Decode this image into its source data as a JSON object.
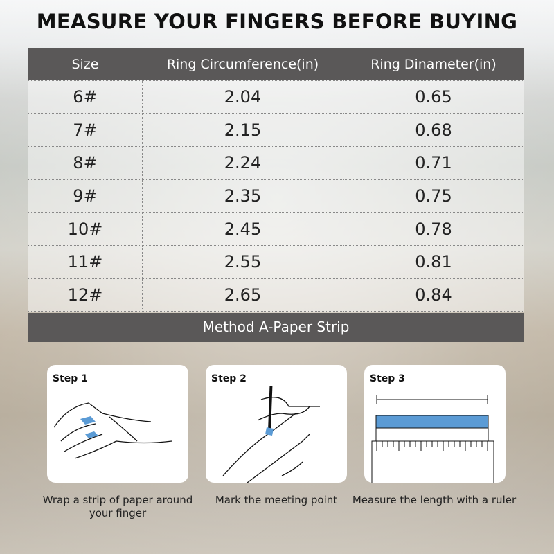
{
  "title": "MEASURE YOUR FINGERS BEFORE BUYING",
  "table": {
    "headers": [
      "Size",
      "Ring Circumference(in)",
      "Ring Dinameter(in)"
    ],
    "rows": [
      [
        "6#",
        "2.04",
        "0.65"
      ],
      [
        "7#",
        "2.15",
        "0.68"
      ],
      [
        "8#",
        "2.24",
        "0.71"
      ],
      [
        "9#",
        "2.35",
        "0.75"
      ],
      [
        "10#",
        "2.45",
        "0.78"
      ],
      [
        "11#",
        "2.55",
        "0.81"
      ],
      [
        "12#",
        "2.65",
        "0.84"
      ]
    ]
  },
  "method": "Method A-Paper Strip",
  "steps": [
    {
      "label": "Step 1",
      "caption": "Wrap a strip of paper around your finger",
      "icon": "hand-wrap-icon"
    },
    {
      "label": "Step 2",
      "caption": "Mark the meeting point",
      "icon": "hand-pen-icon"
    },
    {
      "label": "Step 3",
      "caption": "Measure the length with a ruler",
      "icon": "ruler-icon"
    }
  ],
  "colors": {
    "header": "#5a5858",
    "accent": "#5b9bd5"
  }
}
